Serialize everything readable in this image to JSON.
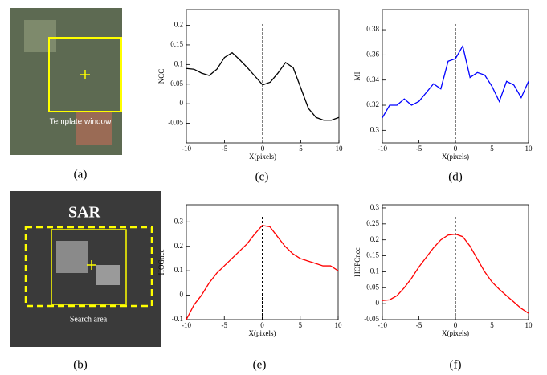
{
  "images": [
    {
      "caption": "(a)",
      "label": "Template window"
    },
    {
      "caption": "(b)",
      "labels": [
        "SAR",
        "Search area"
      ]
    }
  ],
  "chart_data": [
    {
      "type": "line",
      "caption": "(c)",
      "xlabel": "X(pixels)",
      "ylabel": "NCC",
      "color": "#000000",
      "vline": 0,
      "x": [
        -10,
        -9,
        -8,
        -7,
        -6,
        -5,
        -4,
        -3,
        -2,
        -1,
        0,
        1,
        2,
        3,
        4,
        5,
        6,
        7,
        8,
        9,
        10
      ],
      "values": [
        0.09,
        0.088,
        0.078,
        0.072,
        0.088,
        0.118,
        0.13,
        0.112,
        0.092,
        0.07,
        0.048,
        0.055,
        0.078,
        0.105,
        0.092,
        0.04,
        -0.012,
        -0.035,
        -0.042,
        -0.042,
        -0.035
      ],
      "xlim": [
        -10,
        10
      ],
      "xticks": [
        -10,
        -5,
        0,
        5,
        10
      ],
      "ylim": [
        -0.1,
        0.24
      ],
      "yticks": [
        -0.05,
        0,
        0.05,
        0.1,
        0.15,
        0.2
      ]
    },
    {
      "type": "line",
      "caption": "(d)",
      "xlabel": "X(pixels)",
      "ylabel": "MI",
      "color": "#0000ff",
      "vline": 0,
      "x": [
        -10,
        -9,
        -8,
        -7,
        -6,
        -5,
        -4,
        -3,
        -2,
        -1,
        0,
        1,
        2,
        3,
        4,
        5,
        6,
        7,
        8,
        9,
        10
      ],
      "values": [
        0.31,
        0.32,
        0.32,
        0.325,
        0.32,
        0.323,
        0.33,
        0.337,
        0.333,
        0.355,
        0.357,
        0.367,
        0.342,
        0.346,
        0.344,
        0.335,
        0.323,
        0.339,
        0.336,
        0.326,
        0.339
      ],
      "xlim": [
        -10,
        10
      ],
      "xticks": [
        -10,
        -5,
        0,
        5,
        10
      ],
      "ylim": [
        0.29,
        0.396
      ],
      "yticks": [
        0.3,
        0.32,
        0.34,
        0.36,
        0.38
      ]
    },
    {
      "type": "line",
      "caption": "(e)",
      "xlabel": "X(pixels)",
      "ylabel": "HOGncc",
      "color": "#ff0000",
      "vline": 0,
      "x": [
        -10,
        -9,
        -8,
        -7,
        -6,
        -5,
        -4,
        -3,
        -2,
        -1,
        0,
        1,
        2,
        3,
        4,
        5,
        6,
        7,
        8,
        9,
        10
      ],
      "values": [
        -0.1,
        -0.04,
        0.0,
        0.05,
        0.09,
        0.12,
        0.15,
        0.18,
        0.21,
        0.25,
        0.285,
        0.28,
        0.24,
        0.2,
        0.17,
        0.15,
        0.14,
        0.13,
        0.12,
        0.12,
        0.1
      ],
      "xlim": [
        -10,
        10
      ],
      "xticks": [
        -10,
        -5,
        0,
        5,
        10
      ],
      "ylim": [
        -0.1,
        0.37
      ],
      "yticks": [
        -0.1,
        0,
        0.1,
        0.2,
        0.3
      ]
    },
    {
      "type": "line",
      "caption": "(f)",
      "xlabel": "X(pixels)",
      "ylabel": "HOPCncc",
      "color": "#ff0000",
      "vline": 0,
      "x": [
        -10,
        -9,
        -8,
        -7,
        -6,
        -5,
        -4,
        -3,
        -2,
        -1,
        0,
        1,
        2,
        3,
        4,
        5,
        6,
        7,
        8,
        9,
        10
      ],
      "values": [
        0.01,
        0.012,
        0.025,
        0.05,
        0.08,
        0.115,
        0.145,
        0.175,
        0.2,
        0.215,
        0.218,
        0.21,
        0.18,
        0.14,
        0.1,
        0.068,
        0.045,
        0.025,
        0.005,
        -0.015,
        -0.03
      ],
      "xlim": [
        -10,
        10
      ],
      "xticks": [
        -10,
        -5,
        0,
        5,
        10
      ],
      "ylim": [
        -0.05,
        0.31
      ],
      "yticks": [
        -0.05,
        0,
        0.05,
        0.1,
        0.15,
        0.2,
        0.25,
        0.3
      ]
    }
  ]
}
